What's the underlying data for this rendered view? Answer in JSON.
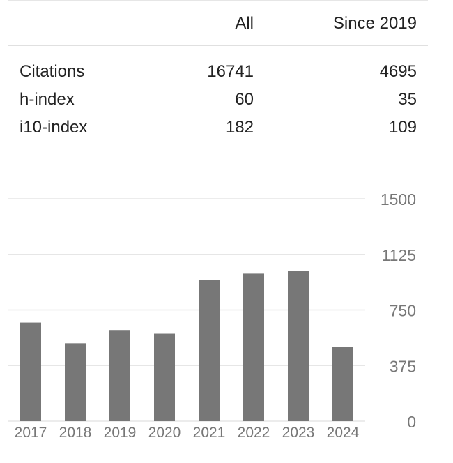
{
  "table": {
    "header": {
      "all": "All",
      "since": "Since 2019"
    },
    "rows": [
      {
        "label": "Citations",
        "all": "16741",
        "since": "4695"
      },
      {
        "label": "h-index",
        "all": "60",
        "since": "35"
      },
      {
        "label": "i10-index",
        "all": "182",
        "since": "109"
      }
    ]
  },
  "colors": {
    "bar": "#777777",
    "grid": "#e6e6e6",
    "tick_text": "#777777",
    "year_text": "#777777"
  },
  "chart_data": {
    "type": "bar",
    "title": "",
    "xlabel": "",
    "ylabel": "",
    "categories": [
      "2017",
      "2018",
      "2019",
      "2020",
      "2021",
      "2022",
      "2023",
      "2024"
    ],
    "values": [
      665,
      525,
      615,
      590,
      950,
      995,
      1015,
      500
    ],
    "ylim": [
      0,
      1500
    ],
    "yticks": [
      "0",
      "375",
      "750",
      "1125",
      "1500"
    ],
    "y_axis_position": "right",
    "grid": true
  }
}
